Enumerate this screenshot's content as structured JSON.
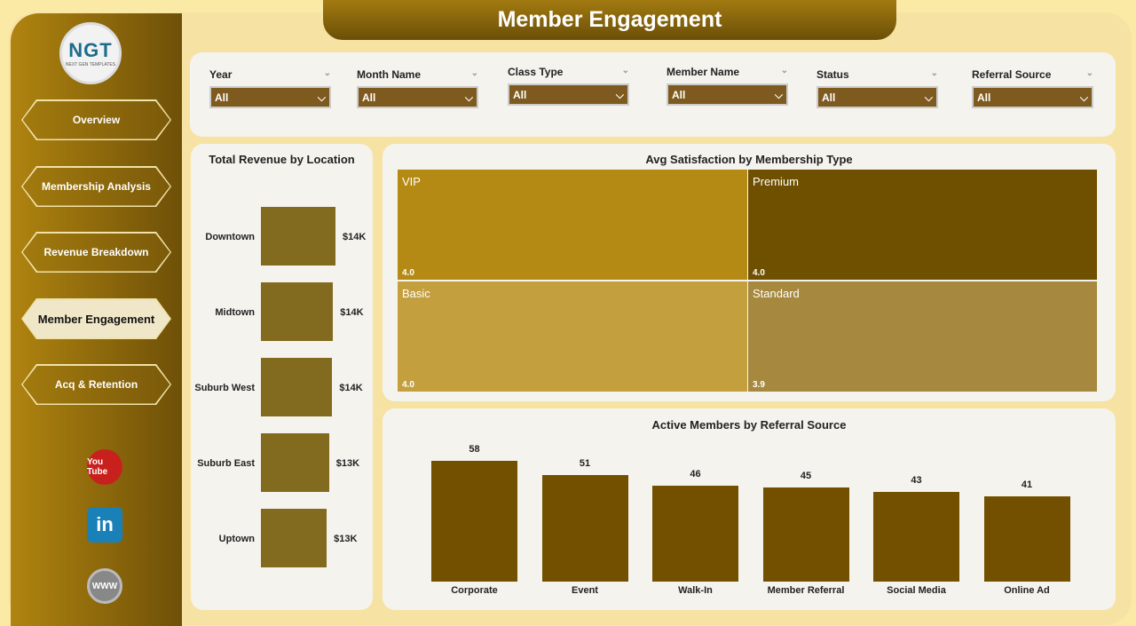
{
  "header": {
    "title": "Member Engagement"
  },
  "logo": {
    "text": "NGT",
    "subtitle": "NEXT GEN TEMPLATES"
  },
  "sidebar": {
    "items": [
      {
        "label": "Overview"
      },
      {
        "label": "Membership Analysis"
      },
      {
        "label": "Revenue Breakdown"
      },
      {
        "label": "Member Engagement",
        "active": true
      },
      {
        "label": "Acq & Retention"
      }
    ],
    "social": [
      {
        "icon": "youtube-icon",
        "label": "You Tube"
      },
      {
        "icon": "linkedin-icon",
        "label": "in"
      },
      {
        "icon": "website-icon",
        "label": "WWW"
      }
    ]
  },
  "filters": [
    {
      "label": "Year",
      "value": "All"
    },
    {
      "label": "Month Name",
      "value": "All"
    },
    {
      "label": "Class Type",
      "value": "All"
    },
    {
      "label": "Member Name",
      "value": "All"
    },
    {
      "label": "Status",
      "value": "All"
    },
    {
      "label": "Referral Source",
      "value": "All"
    }
  ],
  "colors": {
    "accent": "#7a5c0a",
    "bar": "#826a1e",
    "bar2": "#735000"
  },
  "chart_data": [
    {
      "type": "bar",
      "orientation": "horizontal",
      "title": "Total Revenue by Location",
      "categories": [
        "Downtown",
        "Midtown",
        "Suburb West",
        "Suburb East",
        "Uptown"
      ],
      "values": [
        14.2,
        13.9,
        13.8,
        13.4,
        13.1
      ],
      "data_labels": [
        "$14K",
        "$14K",
        "$14K",
        "$13K",
        "$13K"
      ]
    },
    {
      "type": "treemap",
      "title": "Avg Satisfaction by Membership Type",
      "categories": [
        "VIP",
        "Premium",
        "Basic",
        "Standard"
      ],
      "values": [
        4.0,
        4.0,
        4.0,
        3.9
      ],
      "data_labels": [
        "4.0",
        "4.0",
        "4.0",
        "3.9"
      ],
      "colors": [
        "#b48a14",
        "#6f5000",
        "#c49f3e",
        "#a6893e"
      ]
    },
    {
      "type": "bar",
      "title": "Active Members by Referral Source",
      "categories": [
        "Corporate",
        "Event",
        "Walk-In",
        "Member Referral",
        "Social Media",
        "Online Ad"
      ],
      "values": [
        58,
        51,
        46,
        45,
        43,
        41
      ]
    }
  ]
}
